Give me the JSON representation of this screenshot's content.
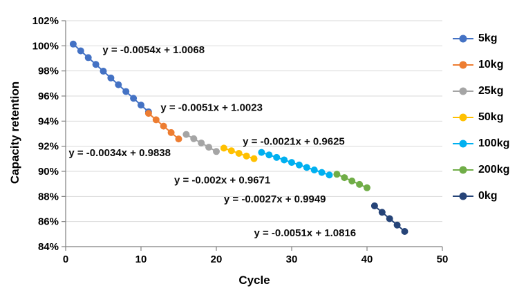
{
  "chart_data": {
    "type": "line",
    "title": "",
    "xlabel": "Cycle",
    "ylabel": "Capacity retention",
    "xlim": [
      0,
      50
    ],
    "ylim": [
      84,
      102
    ],
    "grid": "horizontal",
    "legend_position": "right",
    "x_ticks": {
      "values": [
        0,
        10,
        20,
        30,
        40,
        50
      ],
      "labels": [
        "0",
        "10",
        "20",
        "30",
        "40",
        "50"
      ]
    },
    "y_ticks": {
      "values": [
        84,
        86,
        88,
        90,
        92,
        94,
        96,
        98,
        100,
        102
      ],
      "labels": [
        "84%",
        "86%",
        "88%",
        "90%",
        "92%",
        "94%",
        "96%",
        "98%",
        "100%",
        "102%"
      ]
    },
    "series": [
      {
        "name": "5kg",
        "color": "#4472C4",
        "fit": "y = -0.0054x + 1.0068",
        "x": [
          1,
          2,
          3,
          4,
          5,
          6,
          7,
          8,
          9,
          10,
          11
        ],
        "y": [
          100.14,
          99.6,
          99.06,
          98.52,
          97.98,
          97.44,
          96.9,
          96.36,
          95.82,
          95.28,
          94.74
        ]
      },
      {
        "name": "10kg",
        "color": "#ED7D31",
        "fit": "y = -0.0051x + 1.0023",
        "x": [
          11,
          12,
          13,
          14,
          15
        ],
        "y": [
          94.62,
          94.11,
          93.6,
          93.09,
          92.58
        ]
      },
      {
        "name": "25kg",
        "color": "#A5A5A5",
        "fit": "y = -0.0034x + 0.9838",
        "x": [
          16,
          17,
          18,
          19,
          20
        ],
        "y": [
          92.94,
          92.6,
          92.26,
          91.92,
          91.58
        ]
      },
      {
        "name": "50kg",
        "color": "#FFC000",
        "fit": "y = -0.0021x + 0.9625",
        "x": [
          21,
          22,
          23,
          24,
          25
        ],
        "y": [
          91.85,
          91.64,
          91.43,
          91.22,
          91.01
        ]
      },
      {
        "name": "100kg",
        "color": "#00B0F0",
        "fit": "y = -0.002x + 0.9671",
        "x": [
          26,
          27,
          28,
          29,
          30,
          31,
          32,
          33,
          34,
          35
        ],
        "y": [
          91.51,
          91.31,
          91.11,
          90.91,
          90.71,
          90.51,
          90.31,
          90.11,
          89.91,
          89.71
        ]
      },
      {
        "name": "200kg",
        "color": "#70AD47",
        "fit": "y = -0.0027x + 0.9949",
        "x": [
          36,
          37,
          38,
          39,
          40
        ],
        "y": [
          89.77,
          89.5,
          89.23,
          88.96,
          88.69
        ]
      },
      {
        "name": "0kg",
        "color": "#264478",
        "fit": "y = -0.0051x + 1.0816",
        "x": [
          41,
          42,
          43,
          44,
          45
        ],
        "y": [
          87.25,
          86.74,
          86.23,
          85.72,
          85.21
        ]
      }
    ],
    "annotations": [
      {
        "text": "y = -0.0054x + 1.0068",
        "x": 4.9,
        "y": 99.7
      },
      {
        "text": "y = -0.0051x + 1.0023",
        "x": 12.6,
        "y": 95.1
      },
      {
        "text": "y = -0.0034x + 0.9838",
        "x": 0.4,
        "y": 91.5
      },
      {
        "text": "y = -0.0021x + 0.9625",
        "x": 23.5,
        "y": 92.4
      },
      {
        "text": "y = -0.002x + 0.9671",
        "x": 14.4,
        "y": 89.3
      },
      {
        "text": "y = -0.0027x + 0.9949",
        "x": 21.0,
        "y": 87.8
      },
      {
        "text": "y = -0.0051x + 1.0816",
        "x": 25.0,
        "y": 85.1
      }
    ]
  }
}
